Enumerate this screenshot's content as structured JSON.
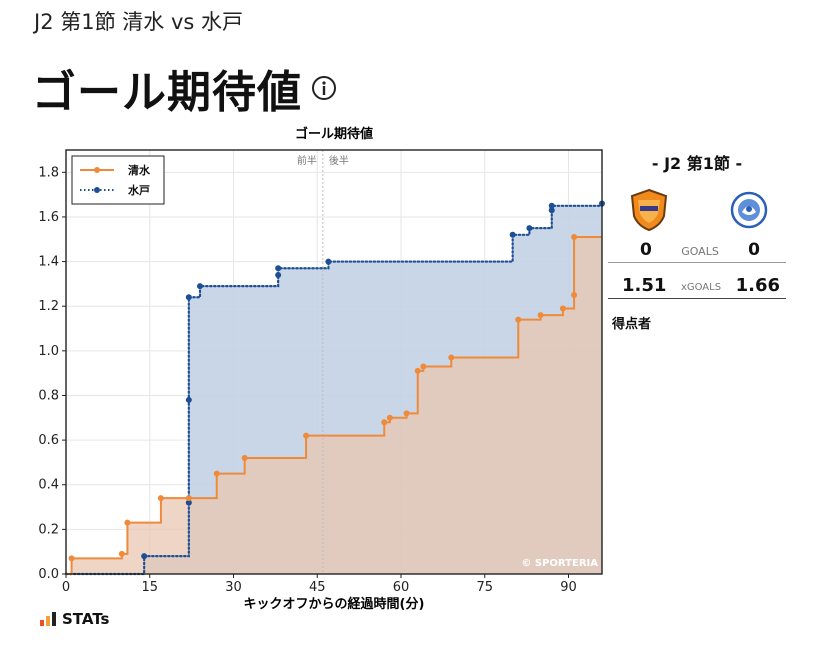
{
  "header": {
    "match": "J2 第1節 清水 vs 水戸",
    "title": "ゴール期待値"
  },
  "colors": {
    "home": "#ee8a3a",
    "away": "#1e4f95",
    "home_fill": "#e8c7b2",
    "away_fill": "#c3d2e4"
  },
  "panel": {
    "heading": "- J2 第1節 -",
    "home_goals": "0",
    "goals_label": "GOALS",
    "away_goals": "0",
    "home_xg": "1.51",
    "xg_label": "xGOALS",
    "away_xg": "1.66",
    "scorers_label": "得点者"
  },
  "logo": {
    "text": "STATs"
  },
  "chart_data": {
    "type": "line",
    "title": "ゴール期待値",
    "xlabel": "キックオフからの経過時間(分)",
    "ylabel": "",
    "xlim": [
      0,
      96
    ],
    "ylim": [
      0,
      1.9
    ],
    "xticks": [
      0,
      15,
      30,
      45,
      60,
      75,
      90
    ],
    "yticks": [
      0.0,
      0.2,
      0.4,
      0.6,
      0.8,
      1.0,
      1.2,
      1.4,
      1.6,
      1.8
    ],
    "grid": true,
    "legend": "top-left",
    "halftime": 46,
    "halftime_labels": [
      "前半",
      "後半"
    ],
    "watermark": "© SPORTERIA",
    "series": [
      {
        "name": "清水",
        "style": "solid",
        "points": [
          [
            1,
            0.07
          ],
          [
            10,
            0.09
          ],
          [
            11,
            0.23
          ],
          [
            17,
            0.34
          ],
          [
            22,
            0.34
          ],
          [
            27,
            0.45
          ],
          [
            32,
            0.52
          ],
          [
            43,
            0.62
          ],
          [
            57,
            0.68
          ],
          [
            58,
            0.7
          ],
          [
            61,
            0.72
          ],
          [
            63,
            0.91
          ],
          [
            64,
            0.93
          ],
          [
            69,
            0.97
          ],
          [
            81,
            1.14
          ],
          [
            85,
            1.16
          ],
          [
            89,
            1.19
          ],
          [
            91,
            1.25
          ],
          [
            91,
            1.51
          ]
        ],
        "end": [
          96,
          1.51
        ]
      },
      {
        "name": "水戸",
        "style": "dotted",
        "points": [
          [
            14,
            0.08
          ],
          [
            22,
            0.32
          ],
          [
            22,
            0.78
          ],
          [
            22,
            1.24
          ],
          [
            24,
            1.29
          ],
          [
            38,
            1.34
          ],
          [
            38,
            1.37
          ],
          [
            47,
            1.4
          ],
          [
            80,
            1.52
          ],
          [
            83,
            1.55
          ],
          [
            87,
            1.63
          ],
          [
            87,
            1.65
          ],
          [
            96,
            1.66
          ]
        ],
        "end": [
          96,
          1.66
        ]
      }
    ]
  }
}
